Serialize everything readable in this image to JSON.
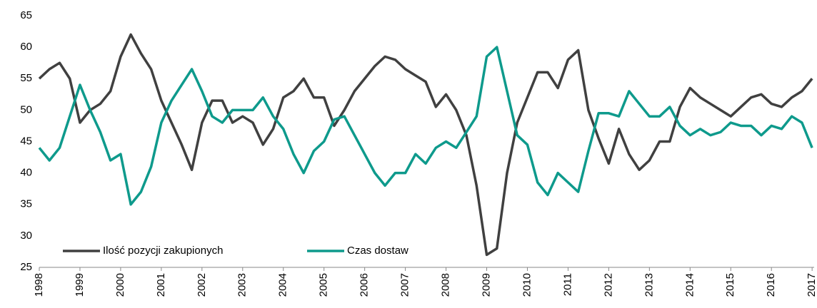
{
  "chart_data": {
    "type": "line",
    "x": [
      1998,
      1998.25,
      1998.5,
      1998.75,
      1999,
      1999.25,
      1999.5,
      1999.75,
      2000,
      2000.25,
      2000.5,
      2000.75,
      2001,
      2001.25,
      2001.5,
      2001.75,
      2002,
      2002.25,
      2002.5,
      2002.75,
      2003,
      2003.25,
      2003.5,
      2003.75,
      2004,
      2004.25,
      2004.5,
      2004.75,
      2005,
      2005.25,
      2005.5,
      2005.75,
      2006,
      2006.25,
      2006.5,
      2006.75,
      2007,
      2007.25,
      2007.5,
      2007.75,
      2008,
      2008.25,
      2008.5,
      2008.75,
      2009,
      2009.25,
      2009.5,
      2009.75,
      2010,
      2010.25,
      2010.5,
      2010.75,
      2011,
      2011.25,
      2011.5,
      2011.75,
      2012,
      2012.25,
      2012.5,
      2012.75,
      2013,
      2013.25,
      2013.5,
      2013.75,
      2014,
      2014.25,
      2014.5,
      2014.75,
      2015,
      2015.25,
      2015.5,
      2015.75,
      2016,
      2016.25,
      2016.5,
      2016.75,
      2017
    ],
    "series": [
      {
        "name": "Ilość pozycji zakupionych",
        "color": "#404040",
        "values": [
          55,
          56.5,
          57.5,
          55,
          48,
          50,
          51,
          53,
          58.5,
          62,
          59,
          56.5,
          51.5,
          48,
          44.5,
          40.5,
          48,
          51.5,
          51.5,
          48,
          49,
          48,
          44.5,
          47,
          52,
          53,
          55,
          52,
          52,
          47.5,
          50,
          53,
          55,
          57,
          58.5,
          58,
          56.5,
          55.5,
          54.5,
          50.5,
          52.5,
          50,
          46,
          38,
          27,
          28,
          40,
          48,
          52,
          56,
          56,
          53.5,
          58,
          59.5,
          50,
          45.5,
          41.5,
          47,
          43,
          40.5,
          42,
          45,
          45,
          50.5,
          53.5,
          52,
          51,
          50,
          49,
          50.5,
          52,
          52.5,
          51,
          50.5,
          52,
          53,
          55
        ]
      },
      {
        "name": "Czas dostaw",
        "color": "#0e9a8c",
        "values": [
          44,
          42,
          44,
          49,
          54,
          50,
          46.5,
          42,
          43,
          35,
          37,
          41,
          48,
          51.5,
          54,
          56.5,
          53,
          49,
          48,
          50,
          50,
          50,
          52,
          49,
          47,
          43,
          40,
          43.5,
          45,
          48.5,
          49,
          46,
          43,
          40,
          38,
          40,
          40,
          43,
          41.5,
          44,
          45,
          44,
          46.5,
          49,
          58.5,
          60,
          53,
          46,
          44.5,
          38.5,
          36.5,
          40,
          38.5,
          37,
          43.5,
          49.5,
          49.5,
          49,
          53,
          51,
          49,
          49,
          50.5,
          47.5,
          46,
          47,
          46,
          46.5,
          48,
          47.5,
          47.5,
          46,
          47.5,
          47,
          49,
          48,
          44
        ]
      }
    ],
    "xlim": [
      1998,
      2017.05
    ],
    "xticks": [
      1998,
      1999,
      2000,
      2001,
      2002,
      2003,
      2004,
      2005,
      2006,
      2007,
      2008,
      2009,
      2010,
      2011,
      2012,
      2013,
      2014,
      2015,
      2016,
      2017
    ],
    "ylim": [
      25,
      65
    ],
    "yticks": [
      25,
      30,
      35,
      40,
      45,
      50,
      55,
      60,
      65
    ],
    "legend": "lower left"
  }
}
